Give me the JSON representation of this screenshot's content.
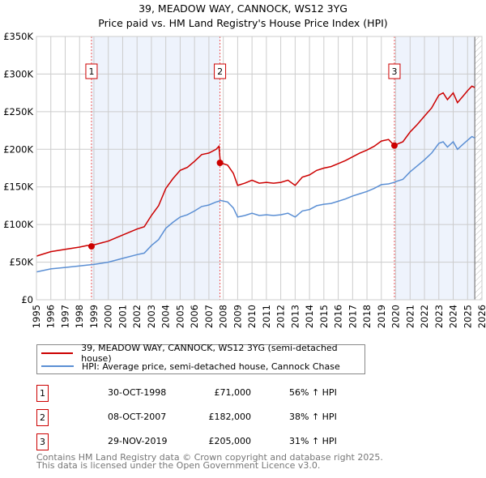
{
  "title": "39, MEADOW WAY, CANNOCK, WS12 3YG",
  "subtitle": "Price paid vs. HM Land Registry's House Price Index (HPI)",
  "legend": {
    "property": "39, MEADOW WAY, CANNOCK, WS12 3YG (semi-detached house)",
    "hpi": "HPI: Average price, semi-detached house, Cannock Chase"
  },
  "sales": [
    {
      "num": "1",
      "date": "30-OCT-1998",
      "price": "£71,000",
      "hpi": "56% ↑ HPI"
    },
    {
      "num": "2",
      "date": "08-OCT-2007",
      "price": "£182,000",
      "hpi": "38% ↑ HPI"
    },
    {
      "num": "3",
      "date": "29-NOV-2019",
      "price": "£205,000",
      "hpi": "31% ↑ HPI"
    }
  ],
  "footer": {
    "line1": "Contains HM Land Registry data © Crown copyright and database right 2025.",
    "line2": "This data is licensed under the Open Government Licence v3.0."
  },
  "colors": {
    "property": "#cc0000",
    "hpi": "#5b8fd4",
    "shade": "#eef3fc"
  },
  "chart_data": {
    "type": "line",
    "xlim": [
      1995,
      2026
    ],
    "ylim": [
      0,
      350000
    ],
    "yticks": [
      0,
      50000,
      100000,
      150000,
      200000,
      250000,
      300000,
      350000
    ],
    "ytick_labels": [
      "£0",
      "£50K",
      "£100K",
      "£150K",
      "£200K",
      "£250K",
      "£300K",
      "£350K"
    ],
    "xticks": [
      "1995",
      "1996",
      "1997",
      "1998",
      "1999",
      "2000",
      "2001",
      "2002",
      "2003",
      "2004",
      "2005",
      "2006",
      "2007",
      "2008",
      "2009",
      "2010",
      "2011",
      "2012",
      "2013",
      "2014",
      "2015",
      "2016",
      "2017",
      "2018",
      "2019",
      "2020",
      "2021",
      "2022",
      "2023",
      "2024",
      "2025",
      "2026"
    ],
    "sale_points": [
      {
        "x": 1998.83,
        "y": 71000
      },
      {
        "x": 2007.77,
        "y": 182000
      },
      {
        "x": 2019.91,
        "y": 205000
      }
    ],
    "series": [
      {
        "name": "property",
        "x": [
          1995,
          1996,
          1997,
          1998,
          1998.5,
          1999,
          2000,
          2001,
          2002,
          2002.5,
          2003,
          2003.5,
          2004,
          2004.5,
          2005,
          2005.5,
          2006,
          2006.5,
          2007,
          2007.5,
          2007.7,
          2007.8,
          2008.3,
          2008.7,
          2009,
          2009.5,
          2010,
          2010.5,
          2011,
          2011.5,
          2012,
          2012.5,
          2013,
          2013.5,
          2014,
          2014.5,
          2015,
          2015.5,
          2016,
          2016.5,
          2017,
          2017.5,
          2018,
          2018.5,
          2019,
          2019.5,
          2019.9,
          2020,
          2020.5,
          2021,
          2021.5,
          2022,
          2022.5,
          2023,
          2023.3,
          2023.6,
          2024,
          2024.3,
          2024.7,
          2025,
          2025.3,
          2025.5
        ],
        "y": [
          58,
          64,
          67,
          70,
          72,
          73,
          78,
          86,
          94,
          97,
          112,
          125,
          148,
          161,
          172,
          176,
          184,
          193,
          195,
          200,
          204,
          182,
          179,
          168,
          152,
          155,
          159,
          155,
          156,
          155,
          156,
          159,
          152,
          163,
          166,
          172,
          175,
          177,
          181,
          185,
          190,
          195,
          199,
          204,
          211,
          213,
          205,
          206,
          210,
          223,
          233,
          244,
          255,
          272,
          275,
          266,
          275,
          262,
          271,
          278,
          284,
          282
        ]
      },
      {
        "name": "hpi",
        "x": [
          1995,
          1996,
          1997,
          1998,
          1998.5,
          1999,
          2000,
          2001,
          2002,
          2002.5,
          2003,
          2003.5,
          2004,
          2004.5,
          2005,
          2005.5,
          2006,
          2006.5,
          2007,
          2007.5,
          2007.7,
          2007.8,
          2008.3,
          2008.7,
          2009,
          2009.5,
          2010,
          2010.5,
          2011,
          2011.5,
          2012,
          2012.5,
          2013,
          2013.5,
          2014,
          2014.5,
          2015,
          2015.5,
          2016,
          2016.5,
          2017,
          2017.5,
          2018,
          2018.5,
          2019,
          2019.5,
          2019.9,
          2020,
          2020.5,
          2021,
          2021.5,
          2022,
          2022.5,
          2023,
          2023.3,
          2023.6,
          2024,
          2024.3,
          2024.7,
          2025,
          2025.3,
          2025.5
        ],
        "y": [
          37,
          41,
          43,
          45,
          46,
          47,
          50,
          55,
          60,
          62,
          72,
          80,
          95,
          103,
          110,
          113,
          118,
          124,
          126,
          130,
          131,
          132,
          130,
          122,
          110,
          112,
          115,
          112,
          113,
          112,
          113,
          115,
          110,
          118,
          120,
          125,
          127,
          128,
          131,
          134,
          138,
          141,
          144,
          148,
          153,
          154,
          156,
          157,
          160,
          170,
          178,
          186,
          195,
          208,
          210,
          203,
          210,
          200,
          207,
          212,
          217,
          215
        ]
      }
    ],
    "y_unit": "thousands GBP"
  }
}
